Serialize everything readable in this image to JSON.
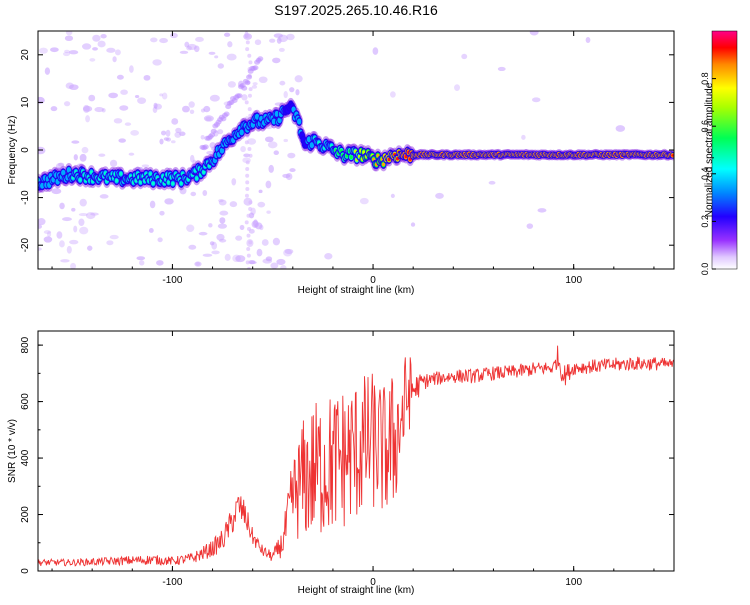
{
  "title": "S197.2025.265.10.46.R16",
  "colors": {
    "snr_line": "#ee3333",
    "axis": "#000000",
    "spectrum_core": "#ff2222",
    "spectrum_mid": "#22cc66",
    "spectrum_edge": "#0000ff",
    "spectrum_halo": "#8a2be2"
  },
  "chart_data": [
    {
      "type": "heatmap",
      "title": "S197.2025.265.10.46.R16",
      "xlabel": "Height of straight line (km)",
      "ylabel": "Frequency (Hz)",
      "xlim": [
        -167,
        150
      ],
      "ylim": [
        -25,
        25
      ],
      "xticks": [
        -100,
        0,
        100
      ],
      "xtick_labels": [
        "-100",
        "0",
        "100"
      ],
      "yticks": [
        -20,
        -10,
        0,
        10,
        20
      ],
      "ytick_labels": [
        "-20",
        "-10",
        "0",
        "10",
        "20"
      ],
      "colorbar": {
        "label": "Normalized spectral amplitude",
        "range": [
          0,
          1
        ],
        "ticks": [
          0.0,
          0.2,
          0.4,
          0.6,
          0.8
        ],
        "tick_labels": [
          "0.0",
          "0.2",
          "0.4",
          "0.6",
          "0.8"
        ]
      },
      "ridge": {
        "x": [
          -167,
          -150,
          -130,
          -110,
          -95,
          -88,
          -80,
          -72,
          -65,
          -58,
          -52,
          -47,
          -42,
          -38,
          -34,
          -30,
          -25,
          -20,
          -15,
          -10,
          -5,
          0,
          5,
          10,
          15,
          20,
          30,
          40,
          60,
          80,
          100,
          120,
          150
        ],
        "y": [
          -7,
          -5,
          -6,
          -6,
          -6,
          -5,
          -2,
          2,
          5,
          6,
          6,
          7,
          9,
          7,
          1,
          2,
          1,
          0,
          -1,
          -1,
          -1,
          -2,
          -2,
          -1,
          -1,
          -1,
          -1,
          -1,
          -1,
          -1,
          -1,
          -1,
          -1
        ],
        "amplitude": [
          0.4,
          0.45,
          0.5,
          0.5,
          0.5,
          0.5,
          0.45,
          0.4,
          0.4,
          0.45,
          0.45,
          0.4,
          0.35,
          0.4,
          0.35,
          0.45,
          0.5,
          0.55,
          0.6,
          0.65,
          0.7,
          0.75,
          0.8,
          0.9,
          0.95,
          1.0,
          1.0,
          1.0,
          1.0,
          1.0,
          1.0,
          1.0,
          0.95
        ]
      },
      "secondary_ridge": {
        "x": [
          -85,
          -78,
          -70,
          -62,
          -56
        ],
        "y": [
          0,
          5,
          10,
          15,
          20
        ]
      }
    },
    {
      "type": "line",
      "title": "",
      "xlabel": "Height of straight line (km)",
      "ylabel": "SNR (10 * v/v)",
      "xlim": [
        -167,
        150
      ],
      "ylim": [
        0,
        850
      ],
      "xticks": [
        -100,
        0,
        100
      ],
      "xtick_labels": [
        "-100",
        "0",
        "100"
      ],
      "yticks": [
        0,
        200,
        400,
        600,
        800
      ],
      "ytick_labels": [
        "0",
        "200",
        "400",
        "600",
        "800"
      ],
      "series": [
        {
          "name": "SNR",
          "x": [
            -167,
            -150,
            -130,
            -110,
            -100,
            -90,
            -80,
            -75,
            -70,
            -67,
            -64,
            -60,
            -55,
            -50,
            -45,
            -40,
            -35,
            -30,
            -25,
            -20,
            -15,
            -10,
            -5,
            0,
            5,
            10,
            15,
            18,
            20,
            25,
            30,
            40,
            50,
            60,
            70,
            80,
            90,
            92,
            95,
            100,
            110,
            120,
            130,
            140,
            150
          ],
          "y": [
            30,
            30,
            35,
            40,
            35,
            45,
            80,
            110,
            180,
            230,
            200,
            120,
            70,
            50,
            100,
            260,
            320,
            350,
            370,
            380,
            400,
            420,
            440,
            460,
            420,
            450,
            560,
            640,
            640,
            670,
            680,
            690,
            690,
            700,
            705,
            715,
            720,
            760,
            690,
            720,
            725,
            730,
            735,
            735,
            730
          ],
          "noise_amplitude": [
            12,
            12,
            15,
            18,
            15,
            20,
            30,
            40,
            50,
            60,
            50,
            30,
            20,
            20,
            50,
            150,
            220,
            250,
            260,
            260,
            260,
            260,
            260,
            250,
            240,
            260,
            200,
            150,
            60,
            30,
            25,
            25,
            25,
            25,
            25,
            25,
            25,
            40,
            40,
            25,
            25,
            25,
            25,
            25,
            20
          ]
        }
      ]
    }
  ]
}
